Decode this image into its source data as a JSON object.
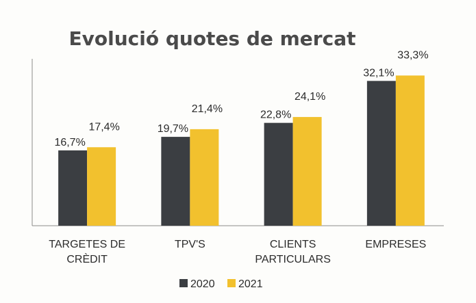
{
  "colors": {
    "series_2020": "#3b3e42",
    "series_2021": "#f2c12e",
    "axis": "#8a8a8a",
    "text": "#2b2b2b",
    "title": "#4a4a4a"
  },
  "chart_data": {
    "type": "bar",
    "title": "Evolució quotes de mercat",
    "xlabel": "",
    "ylabel": "",
    "ylim": [
      0,
      37
    ],
    "grid": false,
    "legend_position": "bottom",
    "categories": [
      [
        "TARGETES DE",
        "CRÈDIT"
      ],
      [
        "TPV'S"
      ],
      [
        "CLIENTS",
        "PARTICULARS"
      ],
      [
        "EMPRESES"
      ]
    ],
    "series": [
      {
        "name": "2020",
        "values": [
          16.7,
          19.7,
          22.8,
          32.1
        ],
        "labels": [
          "16,7%",
          "19,7%",
          "22,8%",
          "32,1%"
        ]
      },
      {
        "name": "2021",
        "values": [
          17.4,
          21.4,
          24.1,
          33.3
        ],
        "labels": [
          "17,4%",
          "21,4%",
          "24,1%",
          "33,3%"
        ]
      }
    ]
  }
}
